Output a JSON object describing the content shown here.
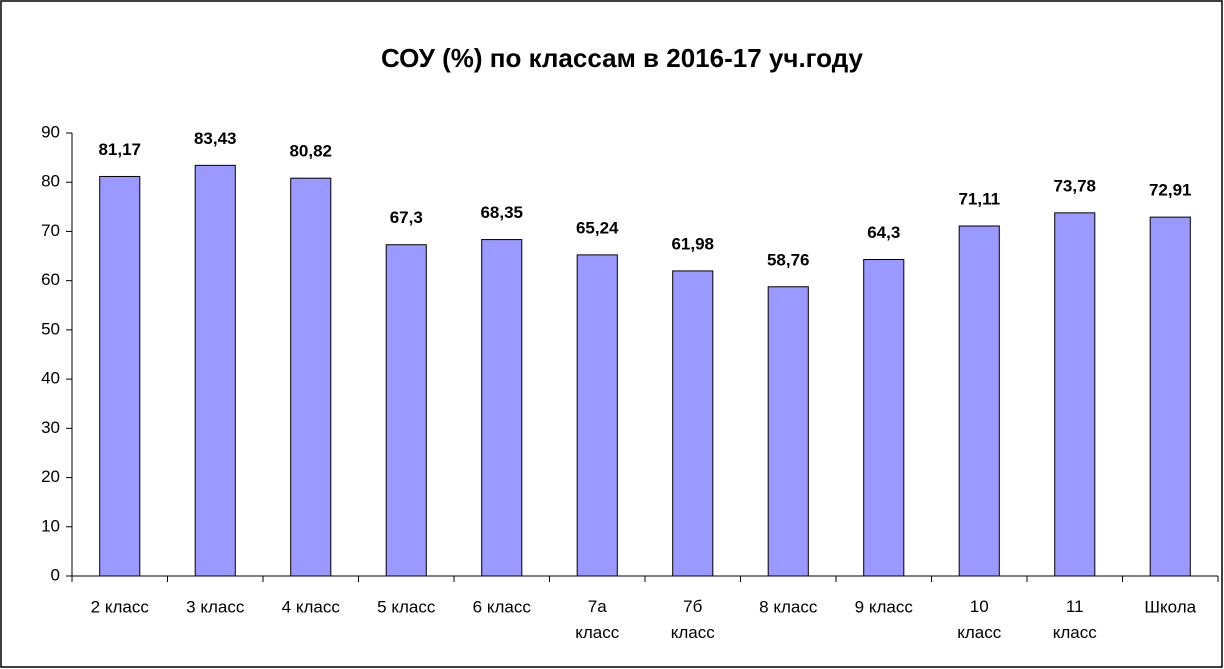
{
  "chart_data": {
    "type": "bar",
    "title": "СОУ (%) по классам в 2016-17 уч.году",
    "categories": [
      "2 класс",
      "3 класс",
      "4 класс",
      "5 класс",
      "6 класс",
      "7а класс",
      "7б класс",
      "8 класс",
      "9 класс",
      "10 класс",
      "11 класс",
      "Школа"
    ],
    "values": [
      81.17,
      83.43,
      80.82,
      67.3,
      68.35,
      65.24,
      61.98,
      58.76,
      64.3,
      71.11,
      73.78,
      72.91
    ],
    "value_labels": [
      "81,17",
      "83,43",
      "80,82",
      "67,3",
      "68,35",
      "65,24",
      "61,98",
      "58,76",
      "64,3",
      "71,11",
      "73,78",
      "72,91"
    ],
    "color": "#9999ff",
    "ylim": [
      0,
      90
    ],
    "yticks": [
      0,
      10,
      20,
      30,
      40,
      50,
      60,
      70,
      80,
      90
    ],
    "grid": false
  }
}
